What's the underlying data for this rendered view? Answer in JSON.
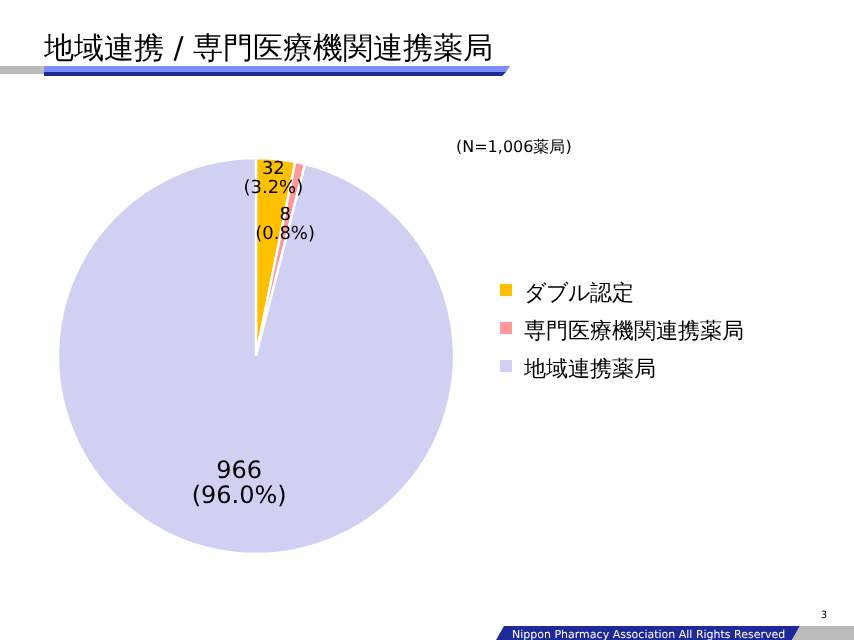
{
  "chart_data": {
    "type": "pie",
    "title": "地域連携 / 専門医療機関連携薬局",
    "categories": [
      "ダブル認定",
      "専門医療機関連携薬局",
      "地域連携薬局"
    ],
    "values": [
      32,
      8,
      966
    ],
    "colors": [
      "#ffc000",
      "#ff9999",
      "#d0d0f2"
    ],
    "value_labels": [
      "32 (3.2%)",
      "8 (0.8%)",
      "966 (96.0%)"
    ],
    "legend": "right",
    "annotations": [
      "(N=1,006薬局)",
      "Nippon Pharmacy Association All Rights Reserved",
      "3"
    ]
  }
}
